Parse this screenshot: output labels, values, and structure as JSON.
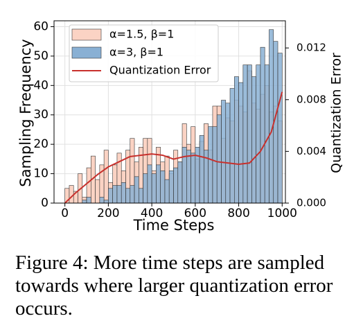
{
  "chart_data": {
    "type": "histogram",
    "xlabel": "Time Steps",
    "ylabel": "Sampling Frequency",
    "y2label": "Quantization Error",
    "bins": [
      0,
      20,
      40,
      60,
      80,
      100,
      120,
      140,
      160,
      180,
      200,
      220,
      240,
      260,
      280,
      300,
      320,
      340,
      360,
      380,
      400,
      420,
      440,
      460,
      480,
      500,
      520,
      540,
      560,
      580,
      600,
      620,
      640,
      660,
      680,
      700,
      720,
      740,
      760,
      780,
      800,
      820,
      840,
      860,
      880,
      900,
      920,
      940,
      960,
      980,
      1000
    ],
    "series": [
      {
        "name": "α=1.5, β=1",
        "color": "#fbd3c4",
        "values": [
          5,
          6,
          4,
          10,
          2,
          12,
          16,
          8,
          13,
          18,
          7,
          13,
          17,
          11,
          18,
          22,
          14,
          19,
          22,
          22,
          11,
          19,
          14,
          16,
          10,
          18,
          14,
          27,
          20,
          26,
          15,
          21,
          27,
          18,
          33,
          33,
          22,
          29,
          28,
          35,
          33,
          31,
          45,
          34,
          32,
          37,
          40,
          31,
          33,
          28
        ]
      },
      {
        "name": "α=3, β=1",
        "color": "#89b0d4",
        "values": [
          0,
          0,
          0,
          0,
          1,
          2,
          0,
          0,
          2,
          1,
          5,
          6,
          6,
          7,
          5,
          6,
          9,
          5,
          10,
          13,
          10,
          13,
          11,
          8,
          11,
          12,
          14,
          19,
          18,
          17,
          19,
          23,
          18,
          26,
          26,
          30,
          35,
          34,
          39,
          43,
          41,
          47,
          47,
          43,
          47,
          53,
          47,
          59,
          55,
          51
        ]
      },
      {
        "name": "Quantization Error",
        "color": "#c8302c",
        "axis": "y2",
        "x": [
          0,
          50,
          100,
          150,
          200,
          250,
          300,
          350,
          400,
          450,
          500,
          550,
          600,
          650,
          700,
          750,
          800,
          850,
          900,
          950,
          1000
        ],
        "values": [
          0.0,
          0.0008,
          0.0015,
          0.0022,
          0.0028,
          0.0032,
          0.0036,
          0.0037,
          0.0038,
          0.0037,
          0.0034,
          0.0036,
          0.0037,
          0.0035,
          0.0032,
          0.0031,
          0.003,
          0.0031,
          0.004,
          0.0055,
          0.0086
        ]
      }
    ],
    "xlim": [
      -50,
      1015
    ],
    "ylim": [
      0,
      62
    ],
    "y2lim": [
      0,
      0.0141
    ],
    "xticks": [
      0,
      200,
      400,
      600,
      800,
      1000
    ],
    "yticks": [
      0,
      10,
      20,
      30,
      40,
      50,
      60
    ],
    "y2ticks": [
      {
        "value": 0,
        "label": "0.000"
      },
      {
        "value": 0.004,
        "label": "0.004"
      },
      {
        "value": 0.008,
        "label": "0.008"
      },
      {
        "value": 0.012,
        "label": "0.012"
      }
    ],
    "grid": true,
    "legend": "upper left"
  },
  "caption_lines": [
    "Figure 4: More time steps are sampled",
    "towards where larger quantization error",
    "occurs."
  ]
}
